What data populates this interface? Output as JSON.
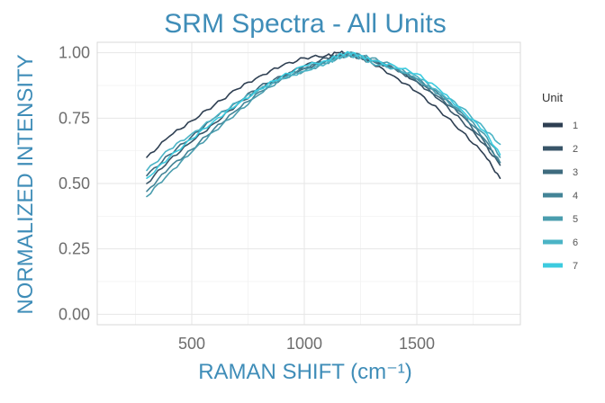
{
  "chart_data": {
    "type": "line",
    "title": "SRM Spectra - All Units",
    "xlabel": "RAMAN SHIFT (cm⁻¹)",
    "ylabel": "NORMALIZED INTENSITY",
    "xlim": [
      80,
      1960
    ],
    "ylim": [
      -0.04,
      1.04
    ],
    "x_ticks": [
      500,
      1000,
      1500
    ],
    "x_tick_labels": [
      "500",
      "1000",
      "1500"
    ],
    "y_ticks": [
      0,
      0.25,
      0.5,
      0.75,
      1.0
    ],
    "y_tick_labels": [
      "0.00",
      "0.25",
      "0.50",
      "0.75",
      "1.00"
    ],
    "grid": true,
    "legend": {
      "title": "Unit",
      "position": "right"
    },
    "x": [
      300,
      400,
      500,
      600,
      700,
      800,
      900,
      1000,
      1100,
      1150,
      1200,
      1250,
      1300,
      1400,
      1500,
      1600,
      1700,
      1800,
      1870
    ],
    "series": [
      {
        "name": "1",
        "color": "#2e3f52",
        "values": [
          0.6,
          0.68,
          0.74,
          0.8,
          0.86,
          0.91,
          0.95,
          0.98,
          0.99,
          1.0,
          1.0,
          0.98,
          0.96,
          0.91,
          0.85,
          0.78,
          0.7,
          0.61,
          0.52
        ]
      },
      {
        "name": "2",
        "color": "#385568",
        "values": [
          0.5,
          0.59,
          0.66,
          0.73,
          0.8,
          0.86,
          0.91,
          0.95,
          0.98,
          0.99,
          0.99,
          0.98,
          0.97,
          0.94,
          0.89,
          0.82,
          0.74,
          0.65,
          0.57
        ]
      },
      {
        "name": "3",
        "color": "#3e6b7e",
        "values": [
          0.53,
          0.61,
          0.68,
          0.75,
          0.81,
          0.87,
          0.91,
          0.94,
          0.97,
          0.99,
          1.0,
          0.99,
          0.97,
          0.94,
          0.89,
          0.83,
          0.76,
          0.66,
          0.58
        ]
      },
      {
        "name": "4",
        "color": "#438497",
        "values": [
          0.47,
          0.56,
          0.63,
          0.71,
          0.78,
          0.85,
          0.9,
          0.94,
          0.97,
          0.98,
          0.99,
          0.98,
          0.97,
          0.94,
          0.9,
          0.84,
          0.77,
          0.67,
          0.58
        ]
      },
      {
        "name": "5",
        "color": "#4a9dae",
        "values": [
          0.45,
          0.54,
          0.62,
          0.7,
          0.77,
          0.84,
          0.9,
          0.93,
          0.96,
          0.98,
          1.0,
          0.99,
          0.98,
          0.95,
          0.9,
          0.84,
          0.77,
          0.69,
          0.6
        ]
      },
      {
        "name": "6",
        "color": "#4bb4c6",
        "values": [
          0.55,
          0.63,
          0.69,
          0.75,
          0.81,
          0.86,
          0.9,
          0.93,
          0.96,
          0.98,
          0.99,
          0.98,
          0.96,
          0.94,
          0.91,
          0.85,
          0.79,
          0.71,
          0.65
        ]
      },
      {
        "name": "7",
        "color": "#3ccbdf",
        "values": [
          0.52,
          0.6,
          0.67,
          0.74,
          0.8,
          0.86,
          0.91,
          0.95,
          0.97,
          0.99,
          1.0,
          0.99,
          0.97,
          0.95,
          0.92,
          0.86,
          0.78,
          0.7,
          0.61
        ]
      }
    ]
  }
}
